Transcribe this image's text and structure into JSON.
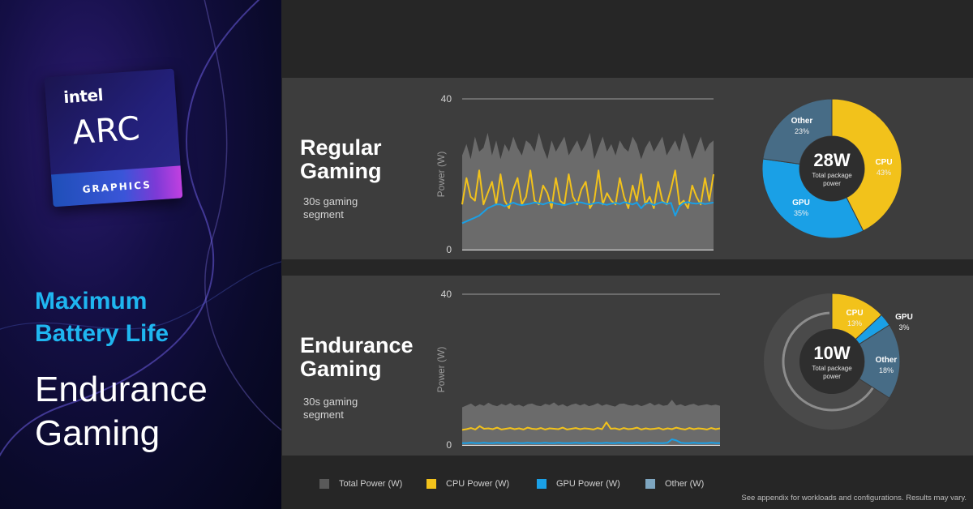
{
  "hero": {
    "logo_brand": "intel",
    "logo_product": "ARC",
    "logo_line": "GRAPHICS",
    "title_line1": "Maximum",
    "title_line2": "Battery Life",
    "subtitle_line1": "Endurance",
    "subtitle_line2": "Gaming"
  },
  "rows": [
    {
      "title_line1": "Regular",
      "title_line2": "Gaming",
      "segment_line1": "30s gaming",
      "segment_line2": "segment"
    },
    {
      "title_line1": "Endurance",
      "title_line2": "Gaming",
      "segment_line1": "30s gaming",
      "segment_line2": "segment"
    }
  ],
  "legend": [
    {
      "label": "Total Power (W)",
      "color": "#595959"
    },
    {
      "label": "CPU Power (W)",
      "color": "#f2c21b"
    },
    {
      "label": "GPU Power (W)",
      "color": "#1aa0e6"
    },
    {
      "label": "Other  (W)",
      "color": "#7ea6c0"
    }
  ],
  "footnote": "See appendix for workloads and configurations. Results may vary.",
  "colors": {
    "total": "#6e6e6e",
    "cpu": "#f2c21b",
    "gpu": "#1aa0e6",
    "other": "#476c86",
    "cpu_dark": "#c9a010",
    "gpu_dark": "#0f7fc6",
    "other_dark": "#3a5d75"
  },
  "chart_data": [
    {
      "type": "area",
      "name": "Regular Gaming",
      "ylabel": "Power (W)",
      "ylim": [
        0,
        40
      ],
      "yticks": [
        0,
        40
      ],
      "x_range_s": [
        0,
        30
      ],
      "series": [
        {
          "name": "Total Power (W)",
          "values": [
            25,
            28,
            24,
            30,
            26,
            27,
            31,
            25,
            29,
            24,
            28,
            26,
            30,
            27,
            25,
            29,
            28,
            26,
            31,
            27,
            24,
            29,
            26,
            28,
            30,
            25,
            27,
            29,
            26,
            28,
            31,
            24,
            27,
            30,
            26,
            28,
            25,
            29,
            27,
            26,
            30,
            28,
            24,
            27,
            29,
            26,
            28,
            30,
            25,
            27,
            29,
            26,
            31,
            28,
            24,
            27,
            30,
            26,
            28,
            29
          ]
        },
        {
          "name": "CPU Power (W)",
          "values": [
            12,
            19,
            14,
            13,
            21,
            12,
            15,
            18,
            12,
            20,
            13,
            11,
            16,
            19,
            12,
            14,
            21,
            13,
            12,
            17,
            15,
            11,
            19,
            13,
            12,
            20,
            14,
            12,
            16,
            18,
            11,
            13,
            21,
            12,
            15,
            13,
            12,
            19,
            14,
            11,
            17,
            13,
            20,
            12,
            14,
            11,
            18,
            13,
            12,
            16,
            21,
            12,
            13,
            11,
            17,
            14,
            12,
            19,
            13,
            20
          ]
        },
        {
          "name": "GPU Power (W)",
          "values": [
            7,
            7.5,
            8,
            8.5,
            9,
            10,
            11,
            11.5,
            12,
            12,
            11.5,
            12,
            12.5,
            12,
            11.8,
            12,
            12.2,
            12.5,
            12.3,
            12,
            12.4,
            12.6,
            12.2,
            12,
            11.8,
            12.1,
            12.4,
            12.6,
            12.5,
            12.2,
            12,
            12.3,
            12.5,
            12.1,
            11.9,
            12.2,
            12.4,
            12.1,
            12.6,
            12.3,
            12,
            12.5,
            11,
            12.2,
            12.4,
            11.8,
            12.3,
            12.6,
            12.1,
            12.4,
            9,
            11.5,
            12.4,
            12.6,
            12.3,
            12.2,
            12.4,
            12.1,
            12.3,
            12.5
          ]
        }
      ]
    },
    {
      "type": "area",
      "name": "Endurance Gaming",
      "ylabel": "Power (W)",
      "ylim": [
        0,
        40
      ],
      "yticks": [
        0,
        40
      ],
      "x_range_s": [
        0,
        30
      ],
      "series": [
        {
          "name": "Total Power (W)",
          "values": [
            10,
            10.5,
            11,
            10.2,
            10.8,
            10.4,
            11.2,
            10.6,
            10.3,
            10.9,
            10.5,
            11.1,
            10.4,
            10.7,
            10.2,
            10.8,
            11,
            10.5,
            10.3,
            10.9,
            10.6,
            11.3,
            10.4,
            10.8,
            10.2,
            10.7,
            11,
            10.5,
            10.9,
            10.3,
            10.6,
            11.1,
            10.4,
            10.8,
            10.5,
            10.2,
            10.9,
            11,
            10.6,
            10.4,
            10.8,
            10.3,
            10.7,
            11.2,
            10.5,
            10.9,
            10.4,
            10.6,
            12,
            10.5,
            10.8,
            10.3,
            10.7,
            10.9,
            10.4,
            10.6,
            10.8,
            10.5,
            10.7,
            10.4
          ]
        },
        {
          "name": "CPU Power (W)",
          "values": [
            4,
            4.2,
            4.5,
            4.1,
            5,
            4.3,
            4.4,
            4.2,
            4.6,
            4.1,
            4.3,
            4.5,
            4.2,
            4.4,
            4.1,
            4.6,
            4.3,
            4.2,
            4.5,
            4.1,
            4.4,
            4.3,
            4.2,
            4.6,
            4.1,
            4.3,
            4.5,
            4.2,
            4.4,
            4.3,
            4.1,
            4.5,
            4.2,
            6,
            4.3,
            4.4,
            4.1,
            4.5,
            4.2,
            4.3,
            4.6,
            4.1,
            4.4,
            4.2,
            4.3,
            4.5,
            4.1,
            4.4,
            4.2,
            4.6,
            4.3,
            4.1,
            4.5,
            4.2,
            4.4,
            4.3,
            4.1,
            4.5,
            4.2,
            4.4
          ]
        },
        {
          "name": "GPU Power (W)",
          "values": [
            0.5,
            0.5,
            0.6,
            0.5,
            0.5,
            0.6,
            0.5,
            0.5,
            0.6,
            0.5,
            0.5,
            0.5,
            0.6,
            0.5,
            0.5,
            0.6,
            0.5,
            0.5,
            0.5,
            0.6,
            0.5,
            0.5,
            0.6,
            0.5,
            0.5,
            0.5,
            0.6,
            0.5,
            0.5,
            0.6,
            0.5,
            0.5,
            0.5,
            0.6,
            0.5,
            0.5,
            0.6,
            0.5,
            0.5,
            0.5,
            0.6,
            0.5,
            0.5,
            0.6,
            0.5,
            0.5,
            0.5,
            0.6,
            1.5,
            1.2,
            0.6,
            0.5,
            0.5,
            0.6,
            0.5,
            0.5,
            0.5,
            0.6,
            0.5,
            0.5
          ]
        }
      ]
    },
    {
      "type": "pie",
      "name": "Regular Gaming breakdown",
      "center_value": "28W",
      "center_label_line1": "Total package",
      "center_label_line2": "power",
      "slices": [
        {
          "label": "CPU",
          "value": 43,
          "display": "43%"
        },
        {
          "label": "GPU",
          "value": 35,
          "display": "35%"
        },
        {
          "label": "Other",
          "value": 23,
          "display": "23%"
        }
      ]
    },
    {
      "type": "pie",
      "name": "Endurance Gaming breakdown",
      "center_value": "10W",
      "center_label_line1": "Total package",
      "center_label_line2": "power",
      "slices": [
        {
          "label": "CPU",
          "value": 13,
          "display": "13%"
        },
        {
          "label": "GPU",
          "value": 3,
          "display": "3%"
        },
        {
          "label": "Other",
          "value": 18,
          "display": "18%"
        }
      ]
    }
  ]
}
